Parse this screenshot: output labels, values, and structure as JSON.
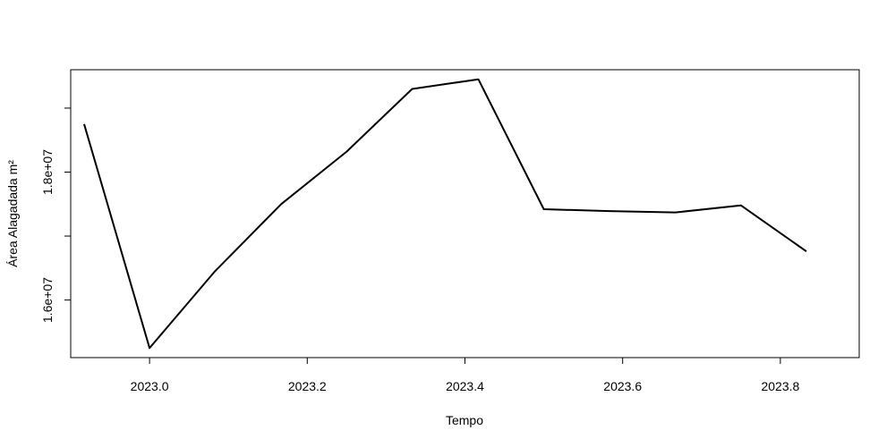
{
  "chart_data": {
    "type": "line",
    "title": "",
    "xlabel": "Tempo",
    "ylabel": "Área Alagadada m²",
    "xlim": [
      2022.9,
      2023.9
    ],
    "ylim": [
      15100000,
      19600000
    ],
    "x_ticks": [
      2023.0,
      2023.2,
      2023.4,
      2023.6,
      2023.8
    ],
    "x_tick_labels": [
      "2023.0",
      "2023.2",
      "2023.4",
      "2023.6",
      "2023.8"
    ],
    "y_ticks": [
      15000000,
      16000000,
      17000000,
      18000000,
      19000000
    ],
    "y_tick_labels": [
      "1.6e+07",
      "1.8e+07"
    ],
    "y_labeled_ticks": [
      16000000,
      18000000
    ],
    "grid": false,
    "line_color": "#000000",
    "series": [
      {
        "x": [
          2022.917,
          2023.0,
          2023.083,
          2023.167,
          2023.25,
          2023.333,
          2023.417,
          2023.5,
          2023.583,
          2023.667,
          2023.75,
          2023.833
        ],
        "y": [
          18750000,
          15250000,
          16450000,
          17500000,
          18320000,
          19300000,
          19450000,
          17420000,
          17390000,
          17370000,
          17480000,
          16760000
        ]
      }
    ]
  }
}
